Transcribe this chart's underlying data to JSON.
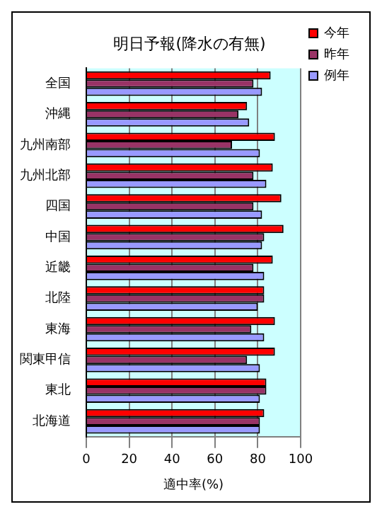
{
  "chart_data": {
    "type": "bar",
    "orientation": "horizontal",
    "title": "明日予報(降水の有無)",
    "xlabel": "適中率(%)",
    "categories": [
      "全国",
      "沖縄",
      "九州南部",
      "九州北部",
      "四国",
      "中国",
      "近畿",
      "北陸",
      "東海",
      "関東甲信",
      "東北",
      "北海道"
    ],
    "series": [
      {
        "name": "今年",
        "color": "#ff0000",
        "values": [
          86,
          75,
          88,
          87,
          91,
          92,
          87,
          83,
          88,
          88,
          84,
          83
        ]
      },
      {
        "name": "昨年",
        "color": "#993366",
        "values": [
          78,
          71,
          68,
          78,
          78,
          83,
          78,
          83,
          77,
          75,
          84,
          81
        ]
      },
      {
        "name": "例年",
        "color": "#9999ff",
        "values": [
          82,
          76,
          81,
          84,
          82,
          82,
          83,
          80,
          83,
          81,
          81,
          81
        ]
      }
    ],
    "xlim": [
      0,
      100
    ],
    "xticks": [
      0,
      20,
      40,
      60,
      80,
      100
    ],
    "grid": "x",
    "legend": "top right"
  }
}
